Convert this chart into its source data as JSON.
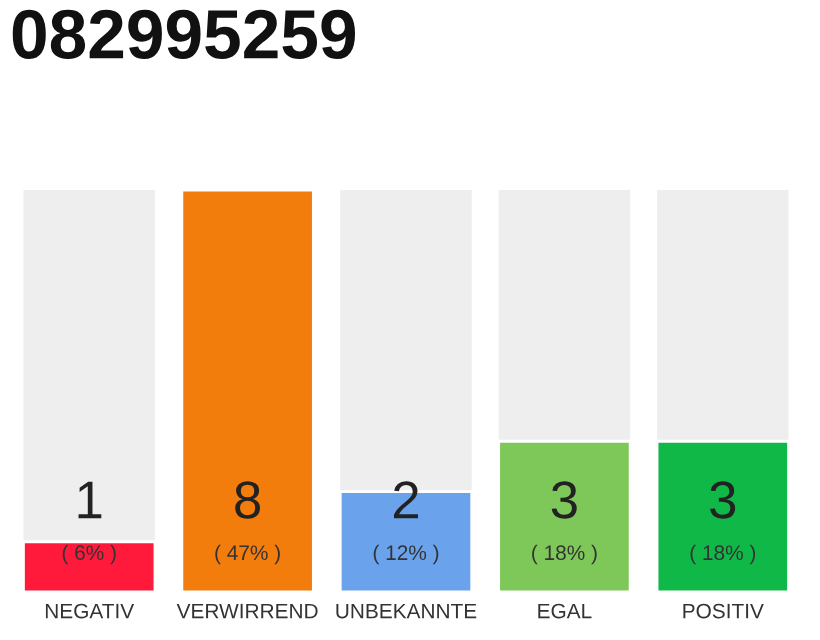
{
  "chart_data": {
    "type": "bar",
    "title": "082995259",
    "categories": [
      "NEGATIV",
      "VERWIRREND",
      "UNBEKANNTE",
      "EGAL",
      "POSITIV"
    ],
    "values": [
      1,
      8,
      2,
      3,
      3
    ],
    "colors": [
      "#ff1a3c",
      "#f27c0c",
      "#6aa3ec",
      "#7ec85a",
      "#10b848"
    ],
    "ylim": [
      0,
      8
    ],
    "tick_labels": "x",
    "data_labels": true,
    "grid": false,
    "legend": false,
    "annotations": [
      "( 6% )",
      "( 47% )",
      "( 12% )",
      "( 18% )",
      "( 18% )"
    ]
  }
}
